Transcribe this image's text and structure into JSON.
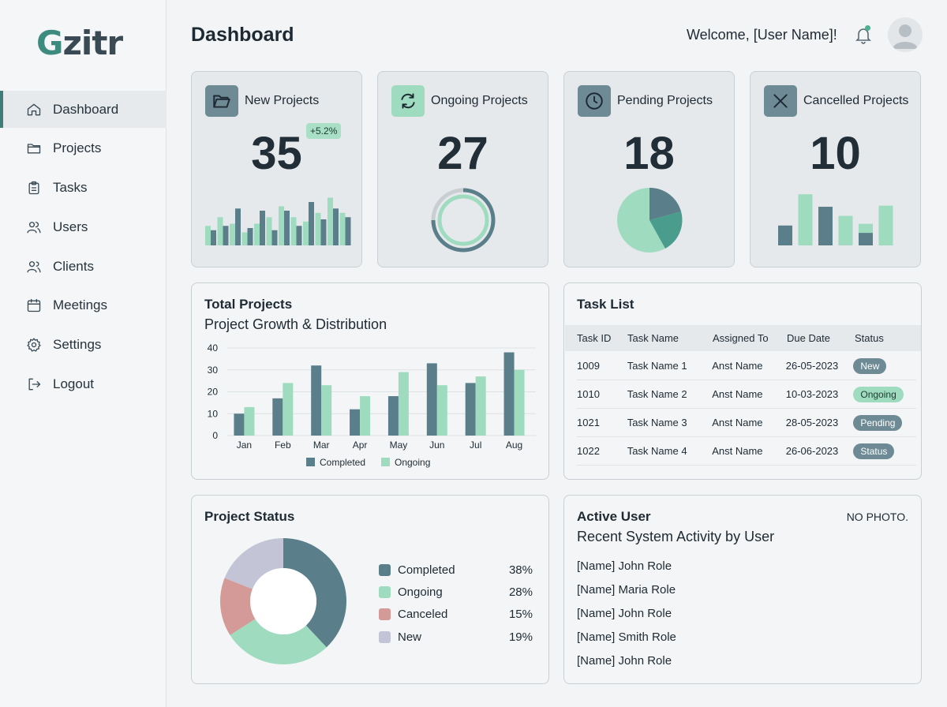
{
  "app": {
    "logo_initial": "G",
    "logo_rest": "zitr"
  },
  "sidebar": {
    "items": [
      {
        "label": "Dashboard",
        "icon": "home-icon",
        "active": true
      },
      {
        "label": "Projects",
        "icon": "folder-icon"
      },
      {
        "label": "Tasks",
        "icon": "clipboard-icon"
      },
      {
        "label": "Users",
        "icon": "users-icon"
      },
      {
        "label": "Clients",
        "icon": "clients-icon"
      },
      {
        "label": "Meetings",
        "icon": "calendar-icon"
      },
      {
        "label": "Settings",
        "icon": "gear-icon"
      },
      {
        "label": "Logout",
        "icon": "logout-icon"
      }
    ]
  },
  "header": {
    "title": "Dashboard",
    "welcome": "Welcome, [User Name]!"
  },
  "stats": [
    {
      "label": "New Projects",
      "value": "35",
      "badge": "+5.2%",
      "icon": "folder-open-icon"
    },
    {
      "label": "Ongoing Projects",
      "value": "27",
      "icon": "refresh-icon"
    },
    {
      "label": "Pending Projects",
      "value": "18",
      "icon": "clock-icon"
    },
    {
      "label": "Cancelled Projects",
      "value": "10",
      "icon": "close-icon"
    }
  ],
  "total_projects": {
    "title": "Total Projects",
    "subtitle": "Project Growth & Distribution",
    "legend": [
      "Completed",
      "Ongoing"
    ]
  },
  "task_list": {
    "title": "Task List",
    "columns": [
      "Task ID",
      "Task Name",
      "Assigned To",
      "Due Date",
      "Status"
    ],
    "rows": [
      {
        "id": "1009",
        "name": "Task Name 1",
        "assigned": "Anst Name",
        "due": "26-05-2023",
        "status": "New"
      },
      {
        "id": "1010",
        "name": "Task Name 2",
        "assigned": "Anst Name",
        "due": "10-03-2023",
        "status": "Ongoing"
      },
      {
        "id": "1021",
        "name": "Task Name 3",
        "assigned": "Anst Name",
        "due": "28-05-2023",
        "status": "Pending"
      },
      {
        "id": "1022",
        "name": "Task Name 4",
        "assigned": "Anst Name",
        "due": "26-06-2023",
        "status": "Status"
      }
    ]
  },
  "project_status": {
    "title": "Project Status",
    "items": [
      {
        "name": "Completed",
        "pct": "38%"
      },
      {
        "name": "Ongoing",
        "pct": "28%"
      },
      {
        "name": "Canceled",
        "pct": "15%"
      },
      {
        "name": "New",
        "pct": "19%"
      }
    ]
  },
  "active_user": {
    "title": "Active User",
    "subtitle": "Recent System Activity by User",
    "photo_note": "NO PHOTO.",
    "items": [
      "[Name] John Role",
      "[Name] Maria Role",
      "[Name] John Role",
      "[Name] Smith Role",
      "[Name] John Role"
    ]
  },
  "colors": {
    "dark": "#5b7f8a",
    "mint": "#9fdcbf",
    "rose": "#d49a98",
    "lavender": "#c3c5d6",
    "teal": "#4a9c8c"
  },
  "chart_data": [
    {
      "type": "bar",
      "categories": [
        "Jan",
        "Feb",
        "Mar",
        "Apr",
        "May",
        "Jun",
        "Jul",
        "Aug"
      ],
      "series": [
        {
          "name": "Completed",
          "values": [
            10,
            17,
            32,
            12,
            18,
            33,
            24,
            38
          ]
        },
        {
          "name": "Ongoing",
          "values": [
            13,
            24,
            23,
            18,
            29,
            23,
            27,
            30
          ]
        }
      ],
      "title": "Total Projects",
      "subtitle": "Project Growth & Distribution",
      "ylim": [
        0,
        40
      ],
      "yticks": [
        0,
        10,
        20,
        30,
        40
      ],
      "grid": true,
      "legend": "bottom"
    },
    {
      "type": "pie",
      "donut": true,
      "title": "Project Status",
      "labels": [
        "Completed",
        "Ongoing",
        "Canceled",
        "New"
      ],
      "values": [
        38,
        28,
        15,
        19
      ],
      "legend": "right"
    }
  ]
}
